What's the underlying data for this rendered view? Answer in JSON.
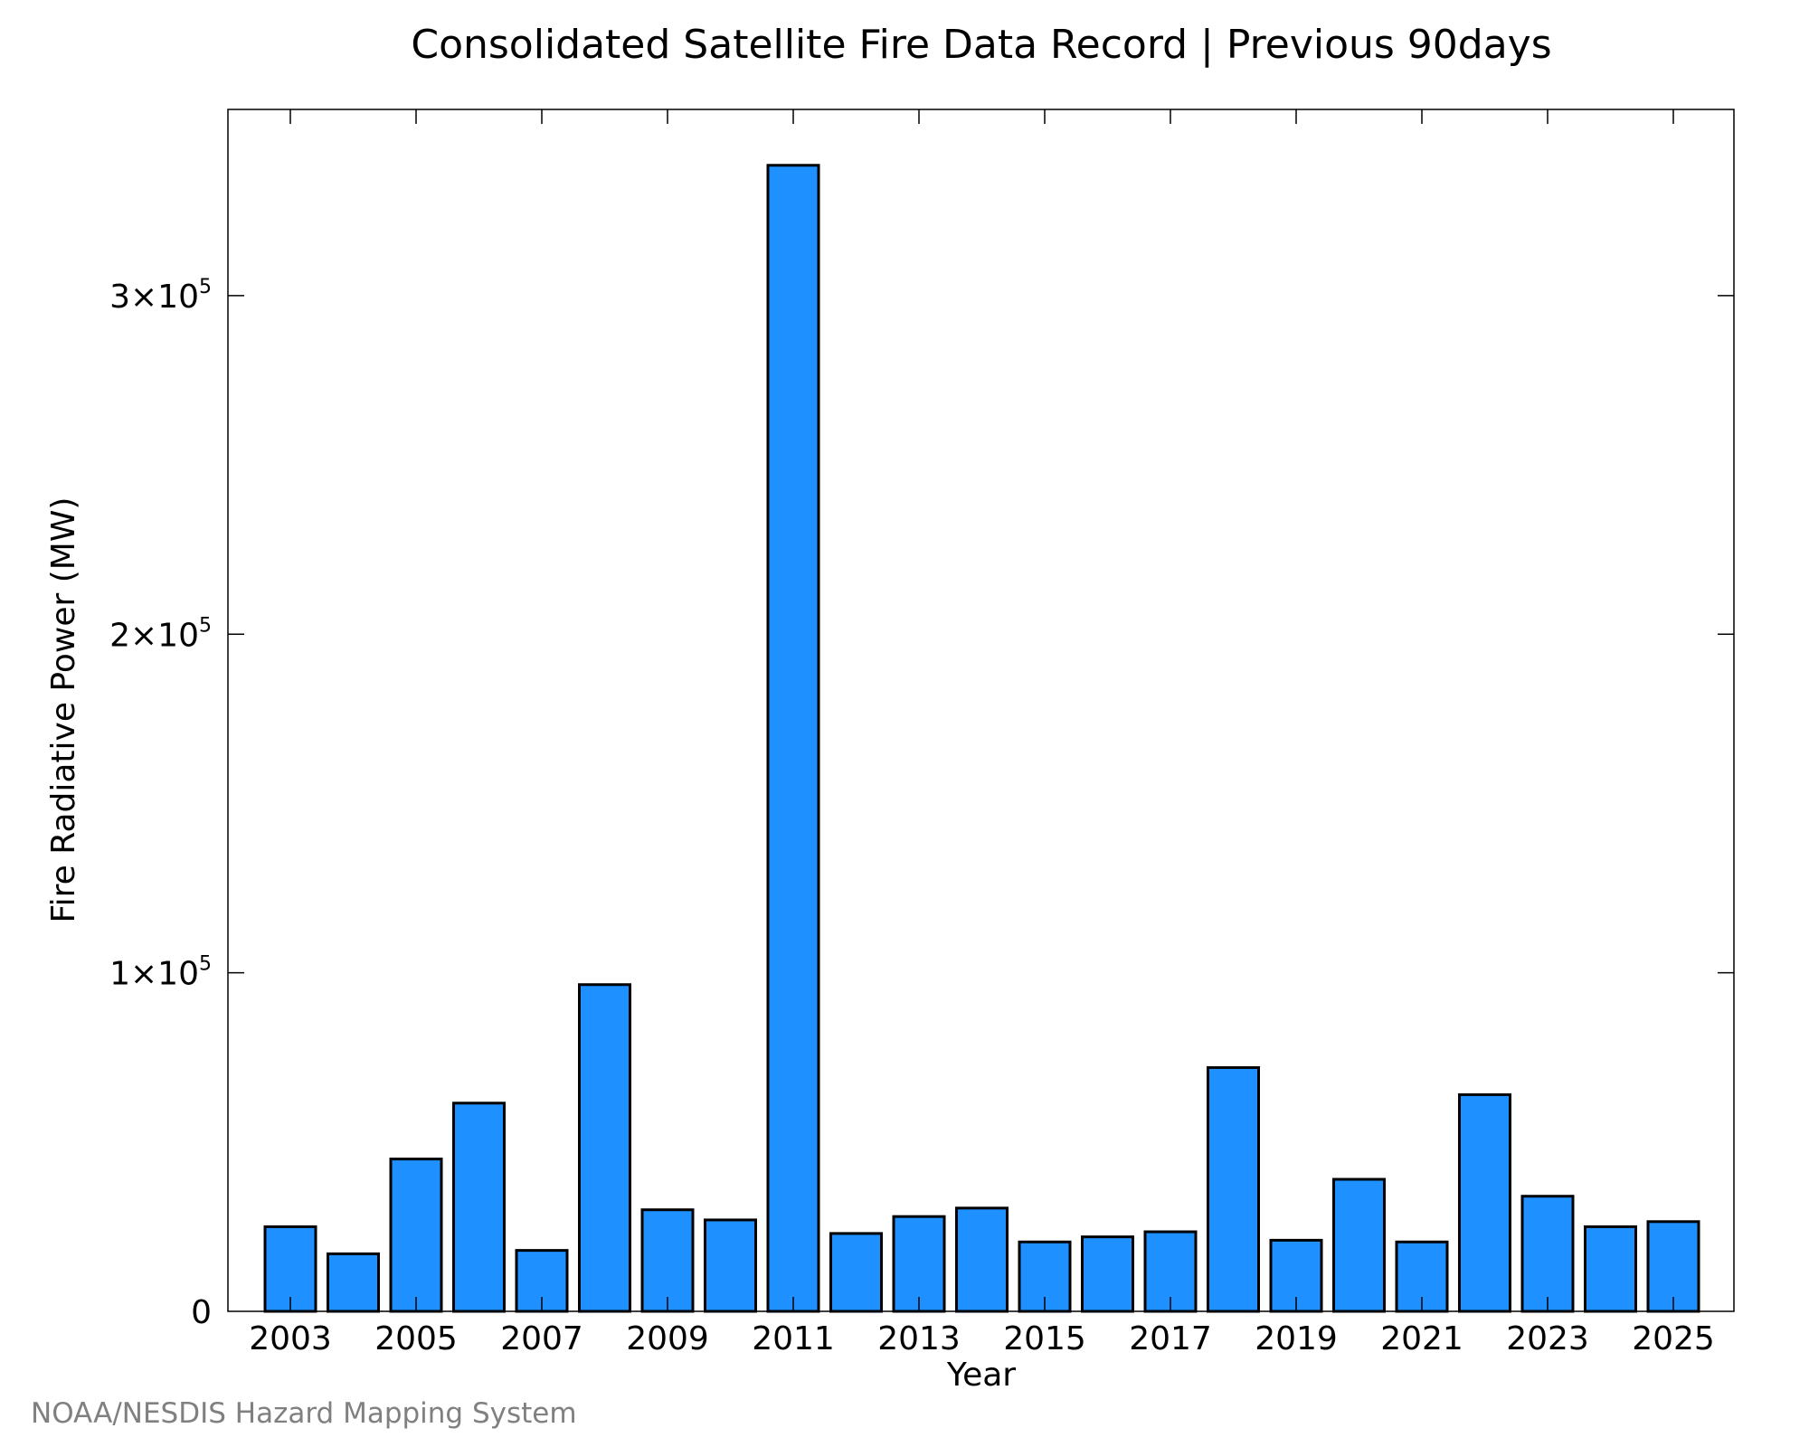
{
  "chart_data": {
    "type": "bar",
    "title": "Consolidated Satellite Fire Data Record | Previous 90days",
    "xlabel": "Year",
    "ylabel": "Fire Radiative Power (MW)",
    "categories": [
      "2003",
      "2004",
      "2005",
      "2006",
      "2007",
      "2008",
      "2009",
      "2010",
      "2011",
      "2012",
      "2013",
      "2014",
      "2015",
      "2016",
      "2017",
      "2018",
      "2019",
      "2020",
      "2021",
      "2022",
      "2023",
      "2024",
      "2025"
    ],
    "x_tick_labels": [
      "2003",
      "2005",
      "2007",
      "2009",
      "2011",
      "2013",
      "2015",
      "2017",
      "2019",
      "2021",
      "2023",
      "2025"
    ],
    "values": [
      25000,
      17000,
      45000,
      61500,
      18000,
      96500,
      30000,
      27000,
      338500,
      23000,
      28000,
      30500,
      20500,
      22000,
      23500,
      72000,
      21000,
      39000,
      20500,
      64000,
      34000,
      25000,
      26500
    ],
    "ylim": [
      0,
      355000
    ],
    "y_ticks": [
      {
        "value": 0,
        "mantissa": "0",
        "exponent": ""
      },
      {
        "value": 100000,
        "mantissa": "1×10",
        "exponent": "5"
      },
      {
        "value": 200000,
        "mantissa": "2×10",
        "exponent": "5"
      },
      {
        "value": 300000,
        "mantissa": "3×10",
        "exponent": "5"
      }
    ],
    "grid": false,
    "bar_color": "#1e90ff",
    "edge_color": "#000000"
  },
  "credit": "NOAA/NESDIS Hazard Mapping System"
}
